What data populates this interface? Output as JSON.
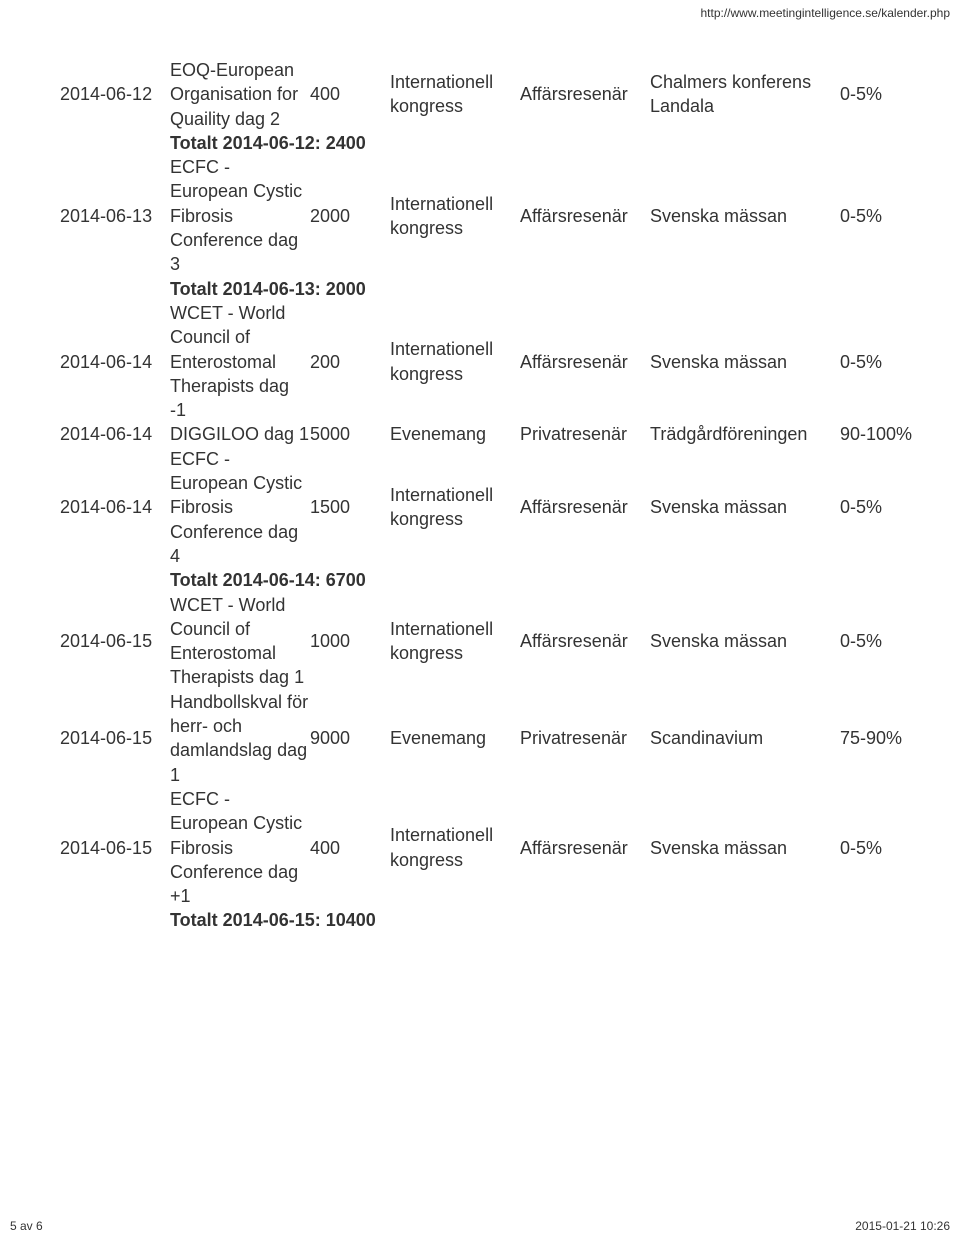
{
  "header_url": "http://www.meetingintelligence.se/kalender.php",
  "footer_left": "5 av 6",
  "footer_right": "2015-01-21 10:26",
  "rows": [
    {
      "kind": "data",
      "date": "2014-06-12",
      "event": "EOQ-European Organisation for Quaility dag 2",
      "count": "400",
      "type": "Internationell kongress",
      "traveler": "Affärsresenär",
      "venue": "Chalmers konferens Landala",
      "pct": "0-5%"
    },
    {
      "kind": "total",
      "text": "Totalt 2014-06-12: 2400"
    },
    {
      "kind": "data",
      "date": "2014-06-13",
      "event": "ECFC - European Cystic Fibrosis Conference dag 3",
      "count": "2000",
      "type": "Internationell kongress",
      "traveler": "Affärsresenär",
      "venue": "Svenska mässan",
      "pct": "0-5%"
    },
    {
      "kind": "total",
      "text": "Totalt 2014-06-13: 2000"
    },
    {
      "kind": "data",
      "date": "2014-06-14",
      "event": "WCET - World Council of Enterostomal Therapists dag -1",
      "count": "200",
      "type": "Internationell kongress",
      "traveler": "Affärsresenär",
      "venue": "Svenska mässan",
      "pct": "0-5%"
    },
    {
      "kind": "data",
      "date": "2014-06-14",
      "event": "DIGGILOO dag 1",
      "count": "5000",
      "type": "Evenemang",
      "traveler": "Privatresenär",
      "venue": "Trädgårdföreningen",
      "pct": "90-100%"
    },
    {
      "kind": "data",
      "date": "2014-06-14",
      "event": "ECFC - European Cystic Fibrosis Conference dag 4",
      "count": "1500",
      "type": "Internationell kongress",
      "traveler": "Affärsresenär",
      "venue": "Svenska mässan",
      "pct": "0-5%"
    },
    {
      "kind": "total",
      "text": "Totalt 2014-06-14: 6700"
    },
    {
      "kind": "data",
      "date": "2014-06-15",
      "event": "WCET - World Council of Enterostomal Therapists dag 1",
      "count": "1000",
      "type": "Internationell kongress",
      "traveler": "Affärsresenär",
      "venue": "Svenska mässan",
      "pct": "0-5%"
    },
    {
      "kind": "data",
      "date": "2014-06-15",
      "event": "Handbollskval för herr- och damlandslag dag 1",
      "count": "9000",
      "type": "Evenemang",
      "traveler": "Privatresenär",
      "venue": "Scandinavium",
      "pct": "75-90%"
    },
    {
      "kind": "data",
      "date": "2014-06-15",
      "event": "ECFC - European Cystic Fibrosis Conference dag +1",
      "count": "400",
      "type": "Internationell kongress",
      "traveler": "Affärsresenär",
      "venue": "Svenska mässan",
      "pct": "0-5%"
    },
    {
      "kind": "total",
      "text": "Totalt 2014-06-15: 10400"
    }
  ]
}
